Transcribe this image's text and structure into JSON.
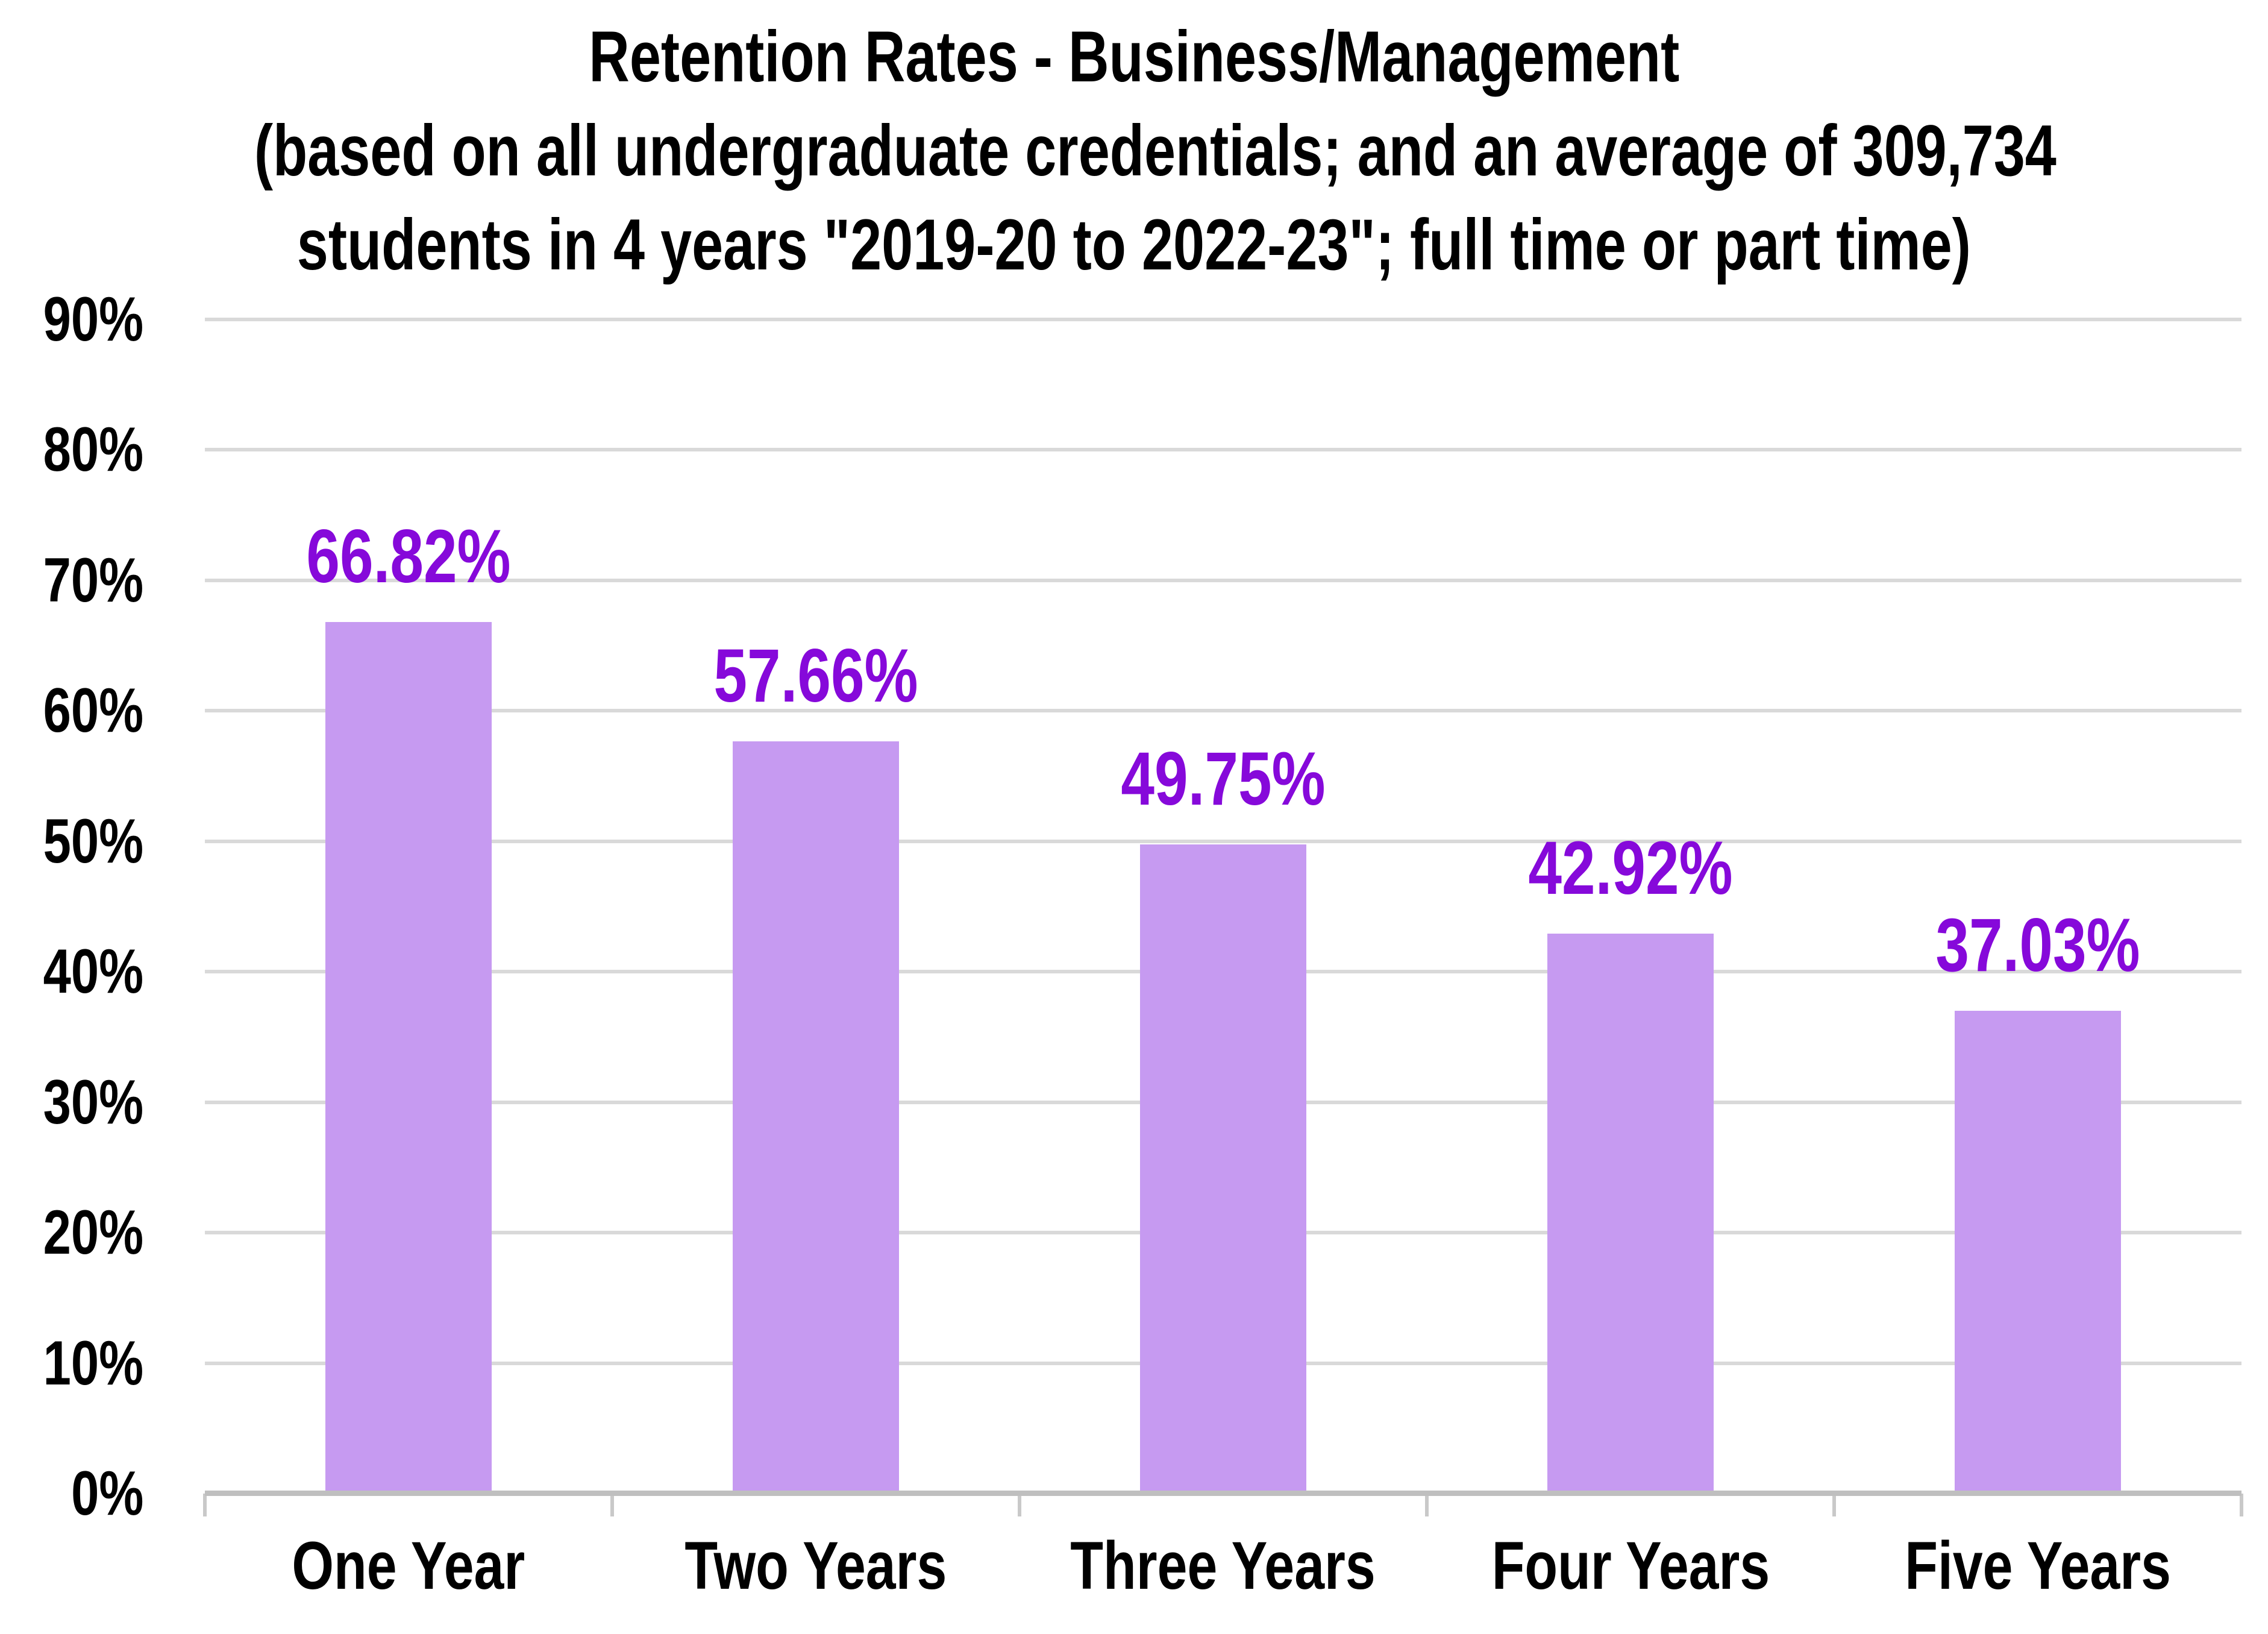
{
  "chart_data": {
    "type": "bar",
    "title_lines": [
      "Retention Rates - Business/Management",
      "(based on all undergraduate credentials; and an average of 309,734",
      "students in 4 years \"2019-20 to 2022-23\"; full time or part time)"
    ],
    "categories": [
      "One Year",
      "Two Years",
      "Three Years",
      "Four Years",
      "Five Years"
    ],
    "values": [
      66.82,
      57.66,
      49.75,
      42.92,
      37.03
    ],
    "value_labels": [
      "66.82%",
      "57.66%",
      "49.75%",
      "42.92%",
      "37.03%"
    ],
    "ytick_labels": [
      "0%",
      "10%",
      "20%",
      "30%",
      "40%",
      "50%",
      "60%",
      "70%",
      "80%",
      "90%"
    ],
    "ytick_step": 10,
    "ylim": [
      0,
      90
    ],
    "xlabel": "",
    "ylabel": "",
    "grid": true,
    "legend": false,
    "colors": {
      "bar_fill": "#c69af1",
      "value_label": "#8609da",
      "gridline": "#d9d9d9",
      "axis_line": "#bfbfbf",
      "tick": "#c9c9c9",
      "text": "#000000",
      "background": "#ffffff"
    }
  }
}
